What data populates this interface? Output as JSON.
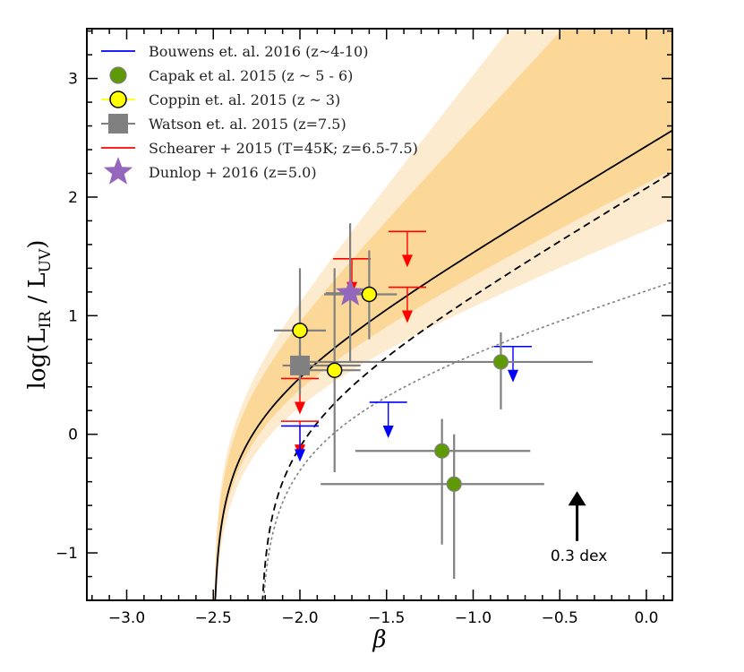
{
  "chart_data": {
    "type": "scatter",
    "title": "",
    "xlabel": "β",
    "ylabel": {
      "main": "log(L",
      "sub1": "IR",
      "mid": " / L",
      "sub2": "UV",
      "end": ")"
    },
    "xlim": [
      -3.23,
      0.15
    ],
    "ylim": [
      -1.4,
      3.42
    ],
    "xticks": [
      -3.0,
      -2.5,
      -2.0,
      -1.5,
      -1.0,
      -0.5,
      0.0
    ],
    "xtick_labels": [
      "−3.0",
      "−2.5",
      "−2.0",
      "−1.5",
      "−1.0",
      "−0.5",
      "0.0"
    ],
    "yticks": [
      -1,
      0,
      1,
      2,
      3
    ],
    "ytick_labels": [
      "−1",
      "0",
      "1",
      "2",
      "3"
    ],
    "grid": false,
    "legend_position": "top-left",
    "legend": [
      {
        "label": "Bouwens et. al. 2016 (z~4-10)",
        "marker": "line",
        "color": "#0000ff"
      },
      {
        "label": "Capak et al. 2015 (z ~ 5 - 6)",
        "marker": "circle",
        "color": "#5f9a06"
      },
      {
        "label": "Coppin et. al. 2015 (z ~ 3)",
        "marker": "circle-line",
        "color": "#ffff00"
      },
      {
        "label": "Watson et. al. 2015 (z=7.5)",
        "marker": "square",
        "color": "#808080"
      },
      {
        "label": "Schearer + 2015 (T=45K; z=6.5-7.5)",
        "marker": "line",
        "color": "#ff0000"
      },
      {
        "label": "Dunlop + 2016 (z=5.0)",
        "marker": "star",
        "color": "#9467bd"
      }
    ],
    "curves": [
      {
        "name": "solid-relation",
        "beta0": -2.5,
        "a": 2.2,
        "c": 0.232,
        "style": "solid",
        "color": "#000000"
      },
      {
        "name": "dashed-relation",
        "beta0": -2.23,
        "a": 2.2,
        "c": 0.118,
        "style": "dashed",
        "color": "#000000"
      },
      {
        "name": "dotted-relation",
        "beta0": -2.23,
        "a": 1.1,
        "c": 0.276,
        "style": "dotted",
        "color": "#808080"
      }
    ],
    "bands": [
      {
        "name": "outer-band",
        "beta0": -2.5,
        "a_low": 1.5,
        "a_high": 4.66,
        "c": 0.232,
        "color": "#fdebd0"
      },
      {
        "name": "inner-band",
        "beta0": -2.5,
        "a_low": 1.89,
        "a_high": 3.95,
        "c": 0.232,
        "color": "#fcd898"
      }
    ],
    "series": [
      {
        "name": "Capak",
        "marker": "circle",
        "color": "#5f9a06",
        "points": [
          {
            "x": -0.84,
            "y": 0.61,
            "xr": [
              -1.97,
              -0.31
            ],
            "yr": [
              0.21,
              0.86
            ]
          },
          {
            "x": -1.18,
            "y": -0.14,
            "xr": [
              -1.68,
              -0.67
            ],
            "yr": [
              -0.93,
              0.13
            ]
          },
          {
            "x": -1.11,
            "y": -0.42,
            "xr": [
              -1.88,
              -0.59
            ],
            "yr": [
              -1.22,
              0.0
            ]
          }
        ]
      },
      {
        "name": "Coppin",
        "marker": "circle",
        "color": "#ffff00",
        "points": [
          {
            "x": -2.0,
            "y": 0.875,
            "xr": [
              -2.15,
              -1.85
            ],
            "yr": [
              0.33,
              1.4
            ]
          },
          {
            "x": -1.8,
            "y": 0.54,
            "xr": [
              -1.95,
              -1.65
            ],
            "yr": [
              -0.32,
              1.4
            ]
          },
          {
            "x": -1.6,
            "y": 1.18,
            "xr": [
              -1.86,
              -1.44
            ],
            "yr": [
              0.8,
              1.55
            ]
          }
        ]
      },
      {
        "name": "Watson",
        "marker": "square",
        "color": "#808080",
        "points": [
          {
            "x": -2.0,
            "y": 0.58,
            "xr": [
              -2.1,
              -1.65
            ],
            "yr": [
              0.38,
              0.78
            ]
          }
        ]
      },
      {
        "name": "Dunlop",
        "marker": "star",
        "color": "#9467bd",
        "points": [
          {
            "x": -1.71,
            "y": 1.19,
            "xr": [
              -1.85,
              -1.57
            ],
            "yr": [
              0.61,
              1.78
            ]
          }
        ]
      }
    ],
    "upper_limits": [
      {
        "name": "Schearer",
        "color": "#ff0000",
        "points": [
          {
            "x": -1.38,
            "y": 1.71
          },
          {
            "x": -1.38,
            "y": 1.24
          },
          {
            "x": -1.7,
            "y": 1.48
          },
          {
            "x": -2.0,
            "y": 0.47
          },
          {
            "x": -2.0,
            "y": 0.11
          }
        ]
      },
      {
        "name": "Bouwens",
        "color": "#0000ff",
        "points": [
          {
            "x": -0.77,
            "y": 0.74
          },
          {
            "x": -1.49,
            "y": 0.27
          },
          {
            "x": -2.0,
            "y": 0.07
          }
        ]
      }
    ],
    "annotation": {
      "text": "0.3 dex",
      "x": -0.4,
      "y_from": -0.9,
      "y_to": -0.48
    }
  }
}
